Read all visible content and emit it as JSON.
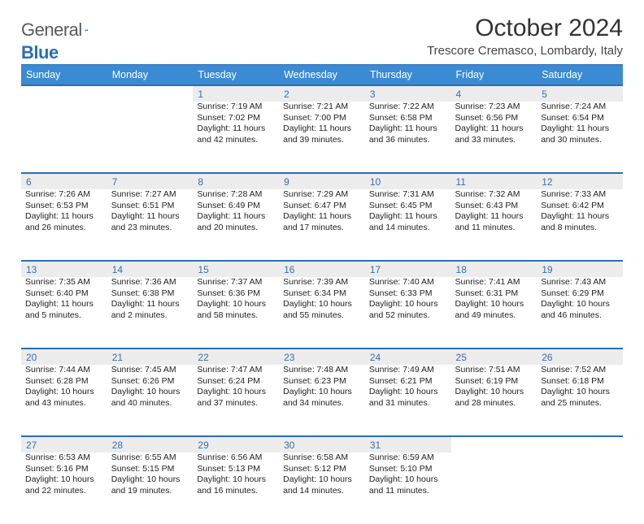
{
  "brand": {
    "general": "General",
    "blue": "Blue"
  },
  "title": "October 2024",
  "location": "Trescore Cremasco, Lombardy, Italy",
  "colors": {
    "headerBg": "#3b8bd4",
    "headerBorder": "#2a6db8",
    "dayBg": "#ececec",
    "dayNum": "#3a6fa8"
  },
  "weekdays": [
    "Sunday",
    "Monday",
    "Tuesday",
    "Wednesday",
    "Thursday",
    "Friday",
    "Saturday"
  ],
  "weeks": [
    [
      null,
      null,
      {
        "n": "1",
        "sr": "7:19 AM",
        "ss": "7:02 PM",
        "dl": "11 hours and 42 minutes."
      },
      {
        "n": "2",
        "sr": "7:21 AM",
        "ss": "7:00 PM",
        "dl": "11 hours and 39 minutes."
      },
      {
        "n": "3",
        "sr": "7:22 AM",
        "ss": "6:58 PM",
        "dl": "11 hours and 36 minutes."
      },
      {
        "n": "4",
        "sr": "7:23 AM",
        "ss": "6:56 PM",
        "dl": "11 hours and 33 minutes."
      },
      {
        "n": "5",
        "sr": "7:24 AM",
        "ss": "6:54 PM",
        "dl": "11 hours and 30 minutes."
      }
    ],
    [
      {
        "n": "6",
        "sr": "7:26 AM",
        "ss": "6:53 PM",
        "dl": "11 hours and 26 minutes."
      },
      {
        "n": "7",
        "sr": "7:27 AM",
        "ss": "6:51 PM",
        "dl": "11 hours and 23 minutes."
      },
      {
        "n": "8",
        "sr": "7:28 AM",
        "ss": "6:49 PM",
        "dl": "11 hours and 20 minutes."
      },
      {
        "n": "9",
        "sr": "7:29 AM",
        "ss": "6:47 PM",
        "dl": "11 hours and 17 minutes."
      },
      {
        "n": "10",
        "sr": "7:31 AM",
        "ss": "6:45 PM",
        "dl": "11 hours and 14 minutes."
      },
      {
        "n": "11",
        "sr": "7:32 AM",
        "ss": "6:43 PM",
        "dl": "11 hours and 11 minutes."
      },
      {
        "n": "12",
        "sr": "7:33 AM",
        "ss": "6:42 PM",
        "dl": "11 hours and 8 minutes."
      }
    ],
    [
      {
        "n": "13",
        "sr": "7:35 AM",
        "ss": "6:40 PM",
        "dl": "11 hours and 5 minutes."
      },
      {
        "n": "14",
        "sr": "7:36 AM",
        "ss": "6:38 PM",
        "dl": "11 hours and 2 minutes."
      },
      {
        "n": "15",
        "sr": "7:37 AM",
        "ss": "6:36 PM",
        "dl": "10 hours and 58 minutes."
      },
      {
        "n": "16",
        "sr": "7:39 AM",
        "ss": "6:34 PM",
        "dl": "10 hours and 55 minutes."
      },
      {
        "n": "17",
        "sr": "7:40 AM",
        "ss": "6:33 PM",
        "dl": "10 hours and 52 minutes."
      },
      {
        "n": "18",
        "sr": "7:41 AM",
        "ss": "6:31 PM",
        "dl": "10 hours and 49 minutes."
      },
      {
        "n": "19",
        "sr": "7:43 AM",
        "ss": "6:29 PM",
        "dl": "10 hours and 46 minutes."
      }
    ],
    [
      {
        "n": "20",
        "sr": "7:44 AM",
        "ss": "6:28 PM",
        "dl": "10 hours and 43 minutes."
      },
      {
        "n": "21",
        "sr": "7:45 AM",
        "ss": "6:26 PM",
        "dl": "10 hours and 40 minutes."
      },
      {
        "n": "22",
        "sr": "7:47 AM",
        "ss": "6:24 PM",
        "dl": "10 hours and 37 minutes."
      },
      {
        "n": "23",
        "sr": "7:48 AM",
        "ss": "6:23 PM",
        "dl": "10 hours and 34 minutes."
      },
      {
        "n": "24",
        "sr": "7:49 AM",
        "ss": "6:21 PM",
        "dl": "10 hours and 31 minutes."
      },
      {
        "n": "25",
        "sr": "7:51 AM",
        "ss": "6:19 PM",
        "dl": "10 hours and 28 minutes."
      },
      {
        "n": "26",
        "sr": "7:52 AM",
        "ss": "6:18 PM",
        "dl": "10 hours and 25 minutes."
      }
    ],
    [
      {
        "n": "27",
        "sr": "6:53 AM",
        "ss": "5:16 PM",
        "dl": "10 hours and 22 minutes."
      },
      {
        "n": "28",
        "sr": "6:55 AM",
        "ss": "5:15 PM",
        "dl": "10 hours and 19 minutes."
      },
      {
        "n": "29",
        "sr": "6:56 AM",
        "ss": "5:13 PM",
        "dl": "10 hours and 16 minutes."
      },
      {
        "n": "30",
        "sr": "6:58 AM",
        "ss": "5:12 PM",
        "dl": "10 hours and 14 minutes."
      },
      {
        "n": "31",
        "sr": "6:59 AM",
        "ss": "5:10 PM",
        "dl": "10 hours and 11 minutes."
      },
      null,
      null
    ]
  ],
  "labels": {
    "sunrise": "Sunrise:",
    "sunset": "Sunset:",
    "daylight": "Daylight:"
  }
}
